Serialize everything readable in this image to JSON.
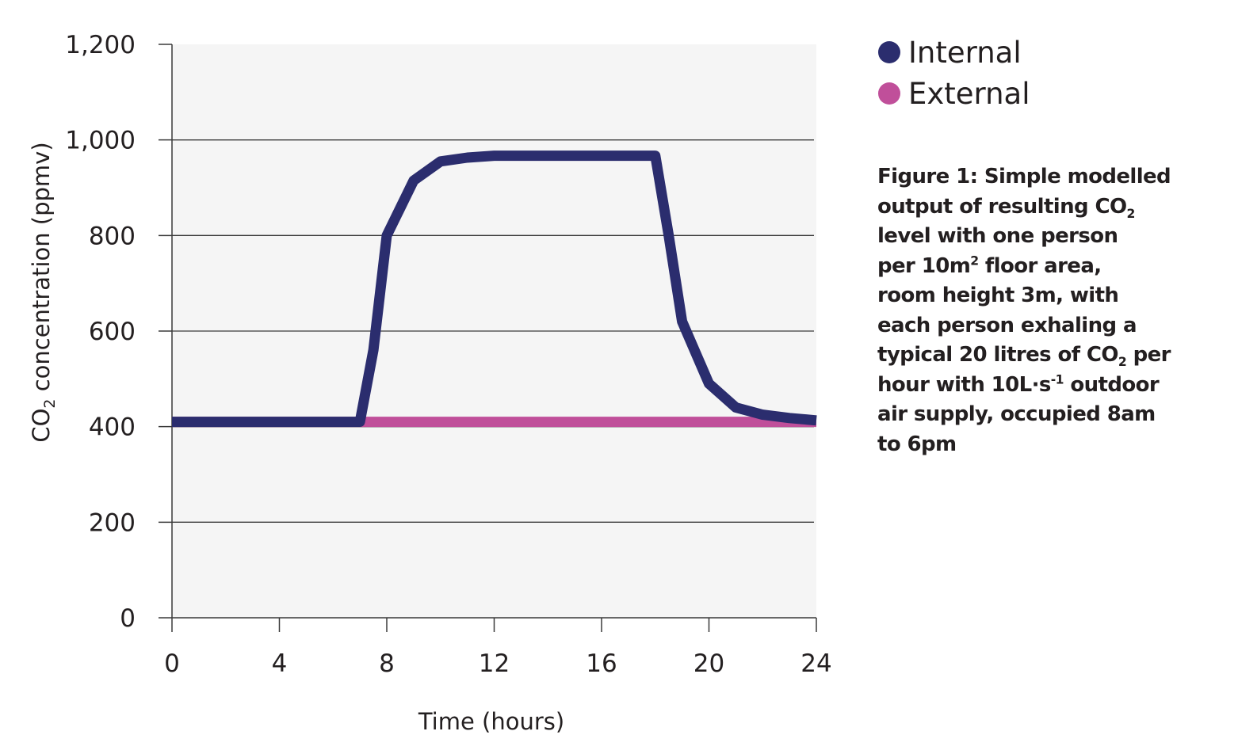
{
  "chart_data": {
    "type": "line",
    "xlabel": "Time (hours)",
    "ylabel": {
      "prefix": "CO",
      "subscript": "2",
      "suffix": " concentration (ppmv)"
    },
    "xlim": [
      0,
      24
    ],
    "ylim": [
      0,
      1200
    ],
    "x_ticks": [
      "0",
      "4",
      "8",
      "12",
      "16",
      "20",
      "24"
    ],
    "y_ticks": [
      "0",
      "200",
      "400",
      "600",
      "800",
      "1,000",
      "1,200"
    ],
    "grid": "horizontal",
    "legend_position": "top-right",
    "series": [
      {
        "name": "Internal",
        "color": "#2b2d6e",
        "x": [
          0,
          7,
          7.5,
          8,
          9,
          10,
          11,
          12,
          14,
          16,
          18,
          18.5,
          19,
          20,
          21,
          22,
          23,
          24
        ],
        "y": [
          410,
          410,
          560,
          800,
          915,
          955,
          963,
          967,
          967,
          967,
          967,
          800,
          620,
          490,
          440,
          425,
          418,
          413
        ]
      },
      {
        "name": "External",
        "color": "#c04f9a",
        "x": [
          0,
          24
        ],
        "y": [
          410,
          410
        ]
      }
    ]
  },
  "legend": {
    "items": [
      {
        "label": "Internal",
        "color": "#2b2d6e"
      },
      {
        "label": "External",
        "color": "#c04f9a"
      }
    ]
  },
  "caption": {
    "lines": [
      [
        "Figure 1: Simple modelled"
      ],
      [
        "output of resulting CO",
        {
          "sub": "2"
        }
      ],
      [
        "level with one person"
      ],
      [
        "per 10m",
        {
          "sup": "2"
        },
        " floor area,"
      ],
      [
        "room height 3m, with"
      ],
      [
        "each person exhaling a"
      ],
      [
        "typical 20 litres of CO",
        {
          "sub": "2"
        },
        " per"
      ],
      [
        "hour with 10L·s",
        {
          "sup": "-1"
        },
        " outdoor"
      ],
      [
        "air supply, occupied 8am"
      ],
      [
        "to 6pm"
      ]
    ]
  }
}
